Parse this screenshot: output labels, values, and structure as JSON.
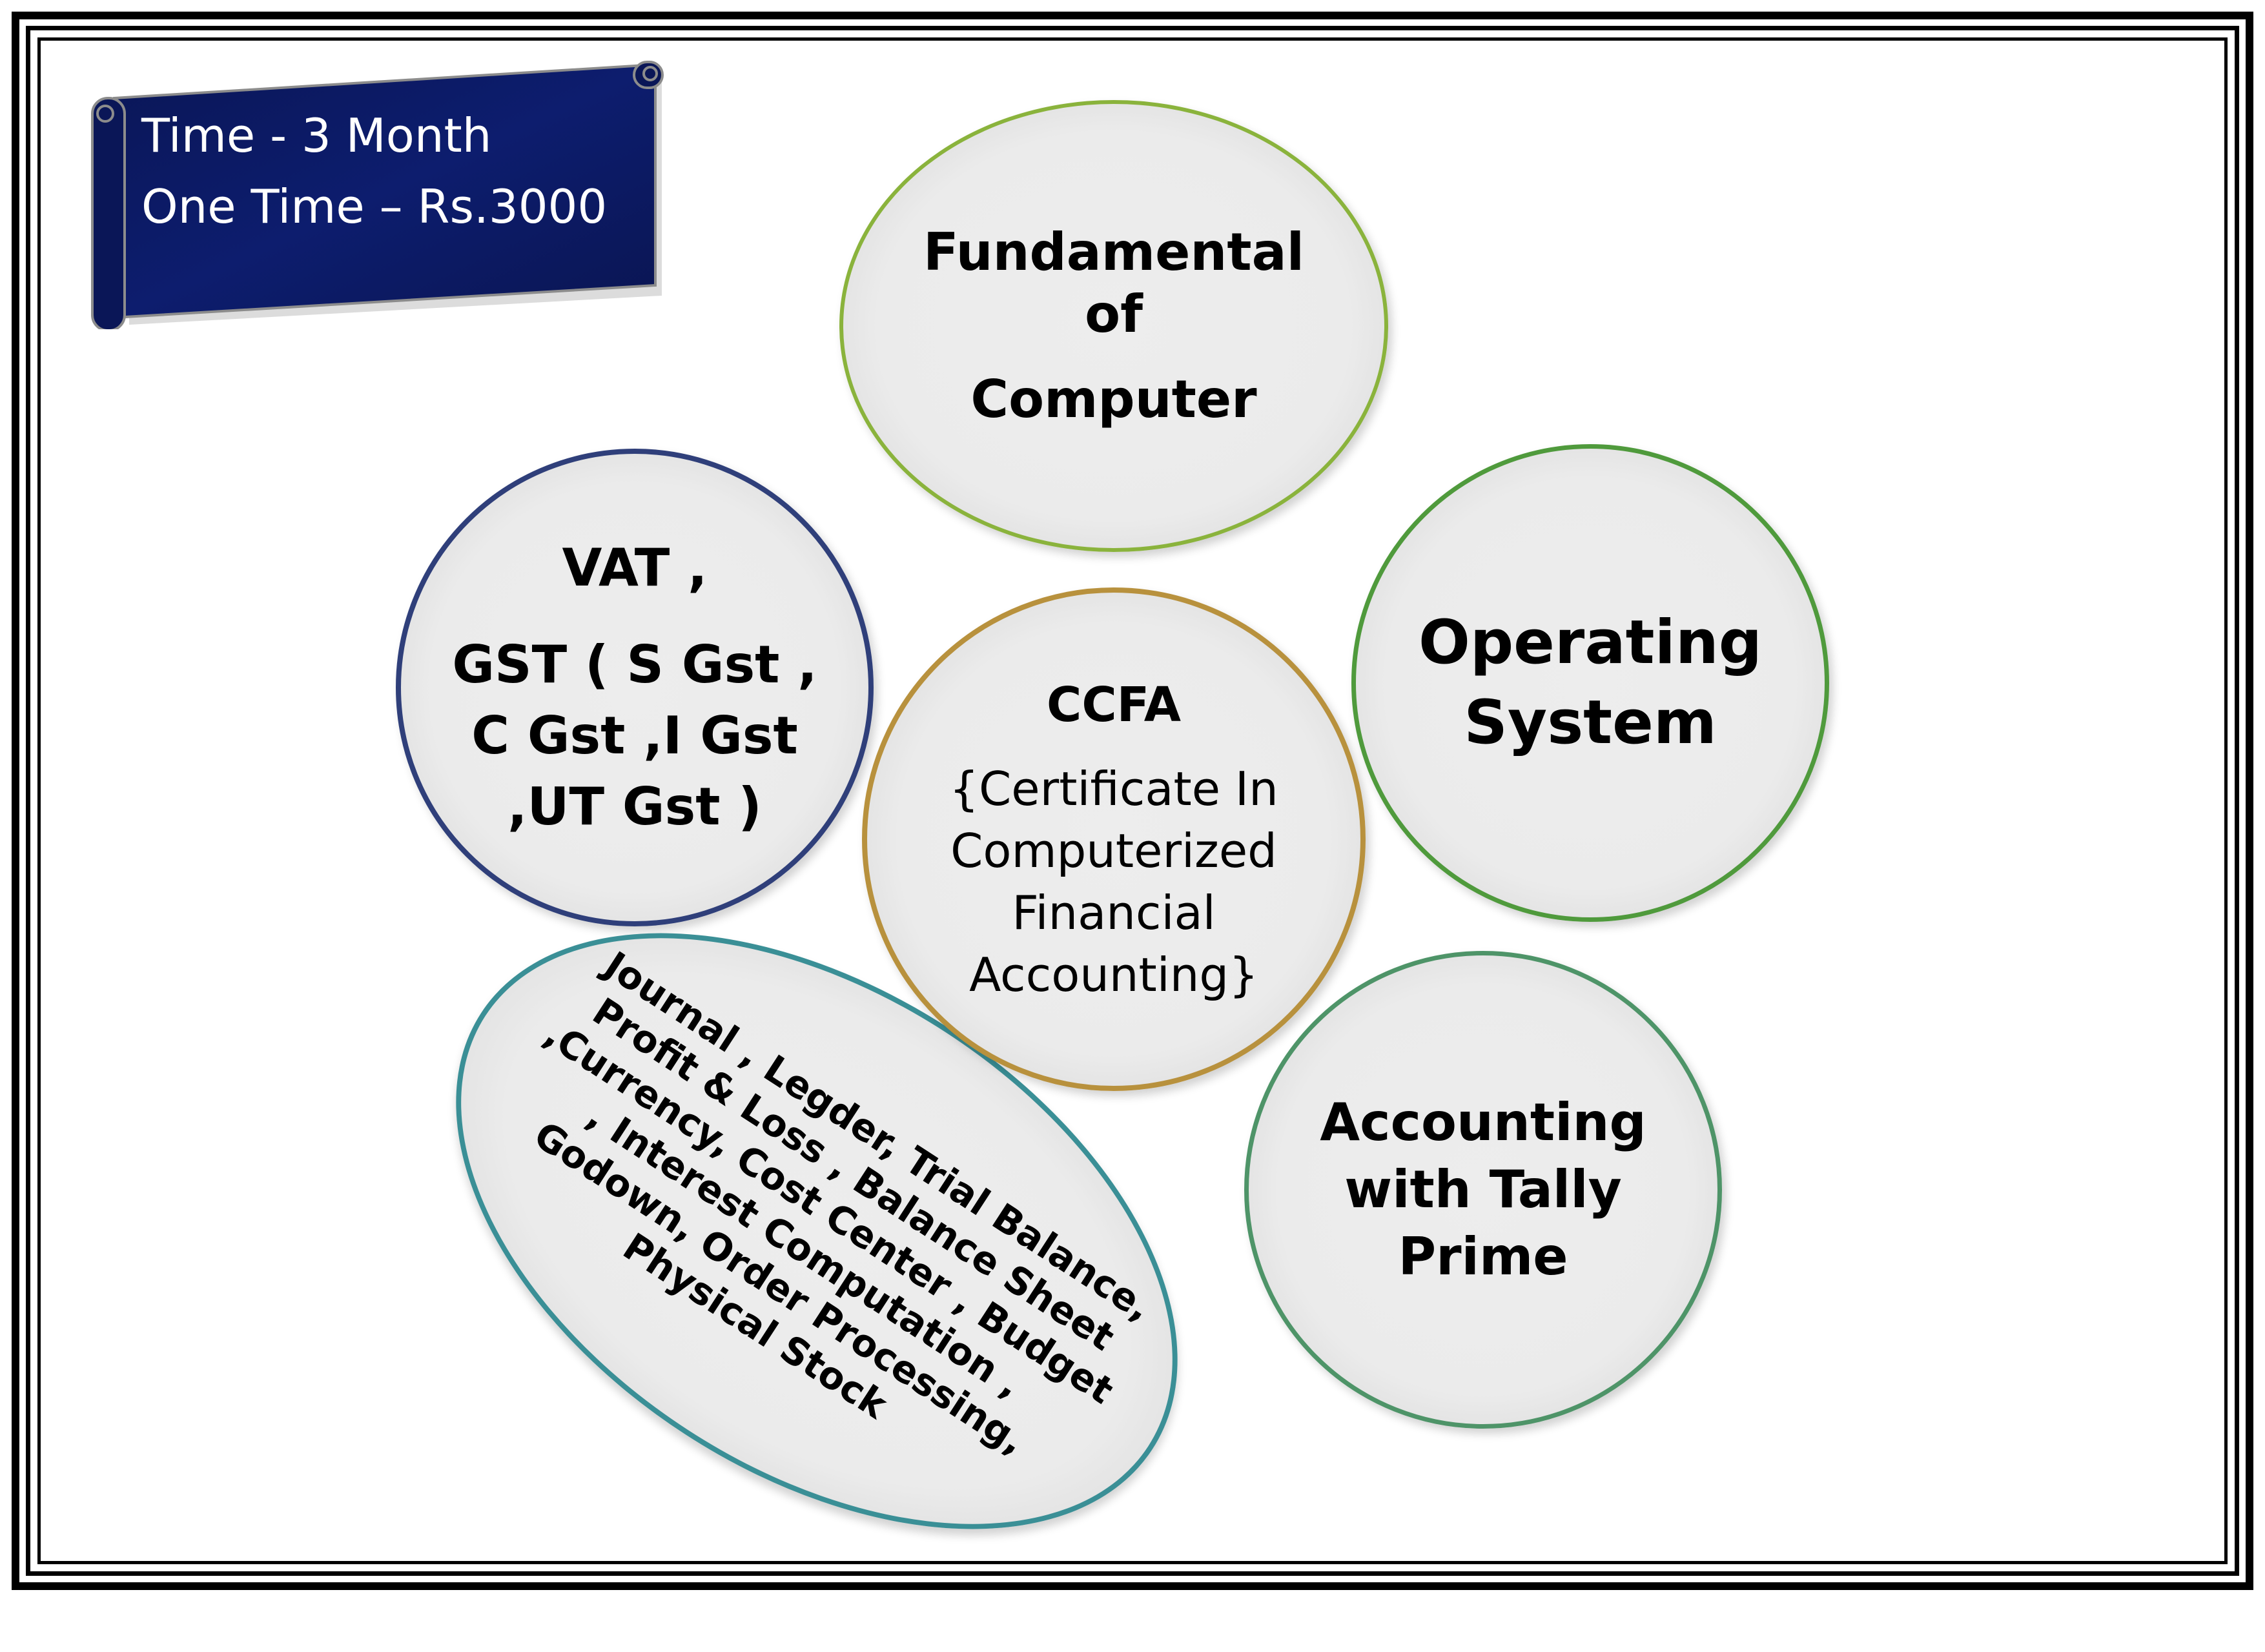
{
  "banner": {
    "line1": "Time - 3 Month",
    "line2": "One Time – Rs.3000",
    "background": "#0b1a5c"
  },
  "circles": {
    "fundamental": {
      "lines": [
        "Fundamental",
        "of",
        "Computer"
      ],
      "border_color": "#8ab33c"
    },
    "vat": {
      "lines": [
        "VAT ,",
        "GST ( S Gst ,",
        "C Gst ,I Gst",
        ",UT Gst )"
      ],
      "border_color": "#2f3f7a"
    },
    "ccfa": {
      "title": "CCFA",
      "lines": [
        "{Certificate In",
        "Computerized",
        "Financial",
        "Accounting}"
      ],
      "border_color": "#b8913d"
    },
    "os": {
      "lines": [
        "Operating",
        "System"
      ],
      "border_color": "#4f9a3c"
    },
    "tally": {
      "lines": [
        "Accounting",
        "with Tally",
        "Prime"
      ],
      "border_color": "#4e9468"
    },
    "topics": {
      "lines": [
        "Journal , Legder, Trial Balance,",
        "Profit & Loss , Balance Sheet",
        ",Currency, Cost Center , Budget",
        ", Interest Computation ,",
        "Godown, Order Processing,",
        "Physical Stock"
      ],
      "border_color": "#3a8f96"
    }
  }
}
